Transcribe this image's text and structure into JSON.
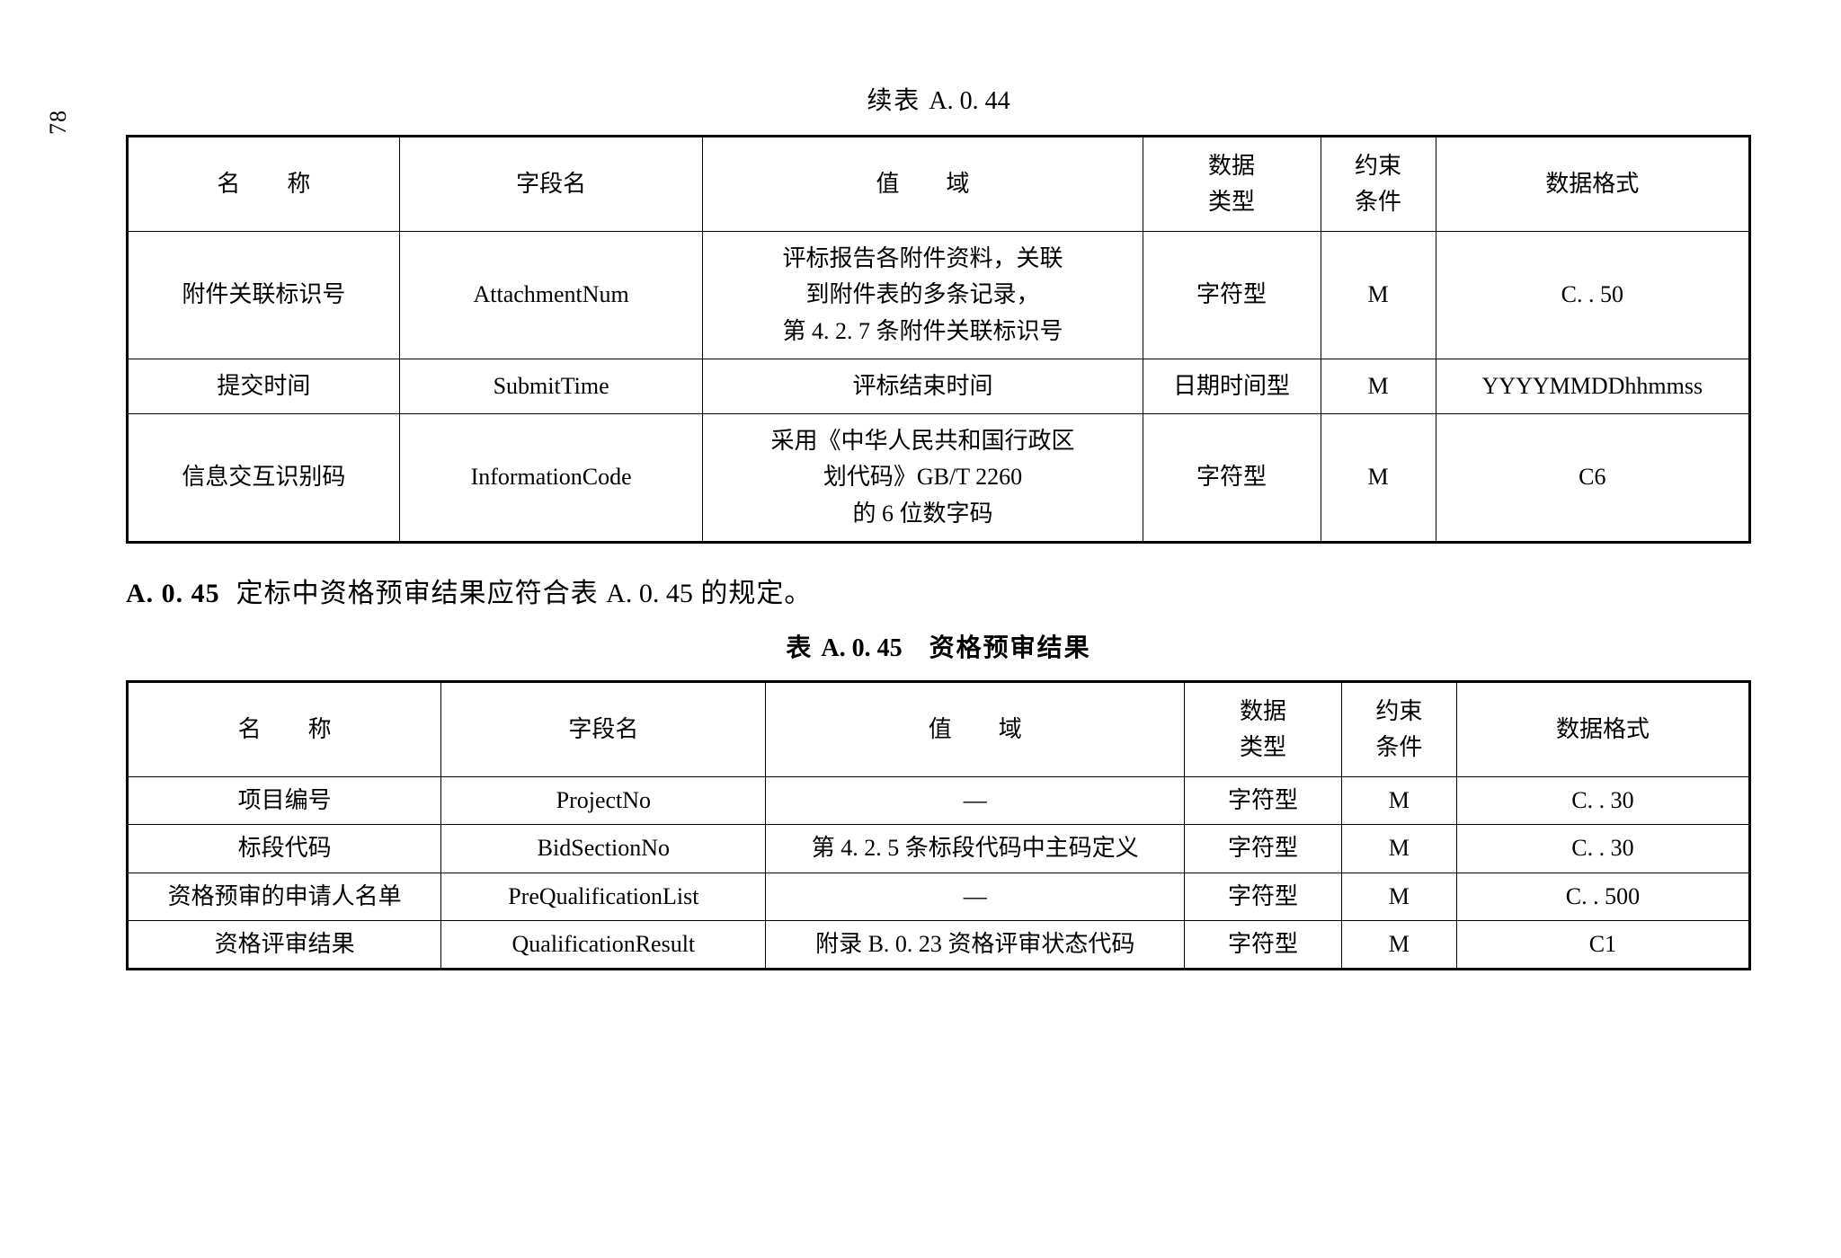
{
  "page_number": "78",
  "table1": {
    "caption_prefix": "续表 ",
    "caption_code": "A. 0. 44",
    "headers": {
      "name": "名　　称",
      "field": "字段名",
      "domain": "值　　域",
      "dtype": "数据\n类型",
      "constraint": "约束\n条件",
      "format": "数据格式"
    },
    "rows": [
      {
        "name": "附件关联标识号",
        "field": "AttachmentNum",
        "domain": "评标报告各附件资料，关联\n到附件表的多条记录，\n第 4. 2. 7 条附件关联标识号",
        "dtype": "字符型",
        "constraint": "M",
        "format": "C. . 50"
      },
      {
        "name": "提交时间",
        "field": "SubmitTime",
        "domain": "评标结束时间",
        "dtype": "日期时间型",
        "constraint": "M",
        "format": "YYYYMMDDhhmmss"
      },
      {
        "name": "信息交互识别码",
        "field": "InformationCode",
        "domain": "采用《中华人民共和国行政区\n划代码》GB/T 2260\n的 6 位数字码",
        "dtype": "字符型",
        "constraint": "M",
        "format": "C6"
      }
    ]
  },
  "section": {
    "num": "A. 0. 45",
    "text_before": "定标中资格预审结果应符合表 ",
    "text_code": "A. 0. 45",
    "text_after": " 的规定。"
  },
  "table2": {
    "caption_prefix": "表 ",
    "caption_code": "A. 0. 45",
    "caption_title": "　资格预审结果",
    "headers": {
      "name": "名　　称",
      "field": "字段名",
      "domain": "值　　域",
      "dtype": "数据\n类型",
      "constraint": "约束\n条件",
      "format": "数据格式"
    },
    "rows": [
      {
        "name": "项目编号",
        "field": "ProjectNo",
        "domain": "—",
        "dtype": "字符型",
        "constraint": "M",
        "format": "C. . 30"
      },
      {
        "name": "标段代码",
        "field": "BidSectionNo",
        "domain": "第 4. 2. 5 条标段代码中主码定义",
        "dtype": "字符型",
        "constraint": "M",
        "format": "C. . 30"
      },
      {
        "name": "资格预审的申请人名单",
        "field": "PreQualificationList",
        "domain": "—",
        "dtype": "字符型",
        "constraint": "M",
        "format": "C. . 500"
      },
      {
        "name": "资格评审结果",
        "field": "QualificationResult",
        "domain": "附录 B. 0. 23 资格评审状态代码",
        "dtype": "字符型",
        "constraint": "M",
        "format": "C1"
      }
    ]
  }
}
